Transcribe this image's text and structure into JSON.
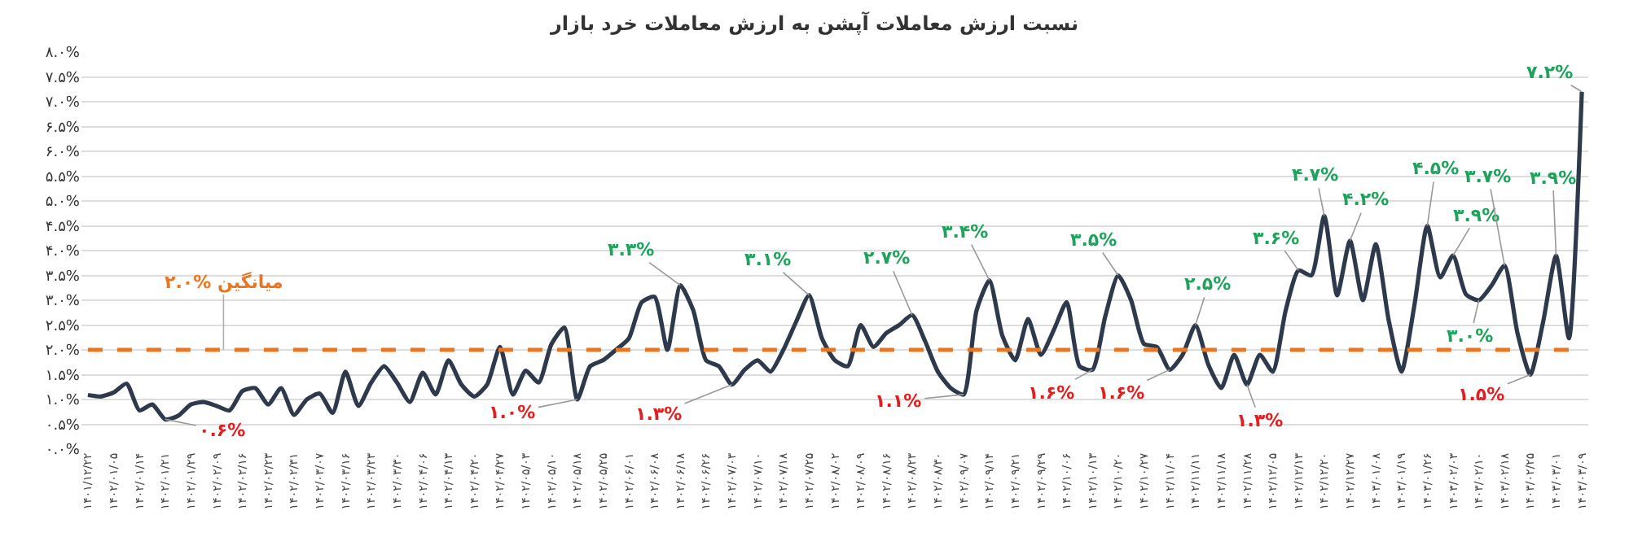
{
  "chart_data": {
    "type": "line",
    "title": "نسبت ارزش معاملات آپشن به ارزش معاملات خرد بازار",
    "categories": [
      "۱۴۰۱/۱۲/۲۲",
      null,
      "۱۴۰۲/۰۱/۰۵",
      null,
      "۱۴۰۲/۰۱/۱۴",
      null,
      "۱۴۰۲/۰۱/۲۱",
      null,
      "۱۴۰۲/۰۱/۲۹",
      null,
      "۱۴۰۲/۰۲/۰۹",
      null,
      "۱۴۰۲/۰۲/۱۶",
      null,
      "۱۴۰۲/۰۲/۲۳",
      null,
      "۱۴۰۲/۰۲/۳۱",
      null,
      "۱۴۰۲/۰۳/۰۷",
      null,
      "۱۴۰۲/۰۳/۱۶",
      null,
      "۱۴۰۲/۰۳/۲۳",
      null,
      "۱۴۰۲/۰۳/۳۰",
      null,
      "۱۴۰۲/۰۴/۰۶",
      null,
      "۱۴۰۲/۰۴/۱۳",
      null,
      "۱۴۰۲/۰۴/۲۰",
      null,
      "۱۴۰۲/۰۴/۲۷",
      null,
      "۱۴۰۲/۰۵/۰۳",
      null,
      "۱۴۰۲/۰۵/۱۰",
      null,
      "۱۴۰۲/۰۵/۱۸",
      null,
      "۱۴۰۲/۰۵/۲۵",
      null,
      "۱۴۰۲/۰۶/۰۱",
      null,
      "۱۴۰۲/۰۶/۰۸",
      null,
      "۱۴۰۲/۰۶/۱۸",
      null,
      "۱۴۰۲/۰۶/۲۶",
      null,
      "۱۴۰۲/۰۷/۰۳",
      null,
      "۱۴۰۲/۰۷/۱۰",
      null,
      "۱۴۰۲/۰۷/۱۸",
      null,
      "۱۴۰۲/۰۷/۲۵",
      null,
      "۱۴۰۲/۰۸/۰۲",
      null,
      "۱۴۰۲/۰۸/۰۹",
      null,
      "۱۴۰۲/۰۸/۱۶",
      null,
      "۱۴۰۲/۰۸/۲۳",
      null,
      "۱۴۰۲/۰۸/۳۰",
      null,
      "۱۴۰۲/۰۹/۰۷",
      null,
      "۱۴۰۲/۰۹/۱۴",
      null,
      "۱۴۰۲/۰۹/۲۱",
      null,
      "۱۴۰۲/۰۹/۲۹",
      null,
      "۱۴۰۲/۱۰/۰۶",
      null,
      "۱۴۰۲/۱۰/۱۳",
      null,
      "۱۴۰۲/۱۰/۲۰",
      null,
      "۱۴۰۲/۱۰/۲۷",
      null,
      "۱۴۰۲/۱۱/۰۴",
      null,
      "۱۴۰۲/۱۱/۱۱",
      null,
      "۱۴۰۲/۱۱/۱۸",
      null,
      "۱۴۰۲/۱۱/۲۸",
      null,
      "۱۴۰۲/۱۲/۰۵",
      null,
      "۱۴۰۲/۱۲/۱۳",
      null,
      "۱۴۰۲/۱۲/۲۰",
      null,
      "۱۴۰۲/۱۲/۲۷",
      null,
      "۱۴۰۳/۰۱/۰۸",
      null,
      "۱۴۰۳/۰۱/۱۹",
      null,
      "۱۴۰۳/۰۱/۲۶",
      null,
      "۱۴۰۳/۰۲/۰۳",
      null,
      "۱۴۰۳/۰۲/۱۰",
      null,
      "۱۴۰۳/۰۲/۱۸",
      null,
      "۱۴۰۳/۰۲/۲۵",
      null,
      "۱۴۰۳/۰۳/۰۱",
      null,
      "۱۴۰۳/۰۳/۰۹"
    ],
    "series": [
      {
        "color": "#2e3a4b",
        "values": [
          1.09,
          1.06,
          1.14,
          1.32,
          0.78,
          0.9,
          0.6,
          0.67,
          0.9,
          0.95,
          0.87,
          0.78,
          1.17,
          1.23,
          0.9,
          1.23,
          0.69,
          1.0,
          1.12,
          0.73,
          1.56,
          0.87,
          1.34,
          1.67,
          1.34,
          0.95,
          1.54,
          1.1,
          1.79,
          1.3,
          1.06,
          1.3,
          2.06,
          1.1,
          1.58,
          1.34,
          2.12,
          2.45,
          1.0,
          1.67,
          1.79,
          2.0,
          2.23,
          2.96,
          3.07,
          2.0,
          3.3,
          2.8,
          1.79,
          1.67,
          1.3,
          1.6,
          1.79,
          1.56,
          2.0,
          2.57,
          3.1,
          2.23,
          1.79,
          1.67,
          2.5,
          2.06,
          2.34,
          2.5,
          2.7,
          2.18,
          1.56,
          1.23,
          1.1,
          2.79,
          3.4,
          2.29,
          1.79,
          2.62,
          1.9,
          2.4,
          2.96,
          1.67,
          1.6,
          2.68,
          3.5,
          3.0,
          2.12,
          2.06,
          1.6,
          1.9,
          2.5,
          1.7,
          1.23,
          1.9,
          1.3,
          1.9,
          1.56,
          2.79,
          3.6,
          3.5,
          4.7,
          3.1,
          4.2,
          3.0,
          4.13,
          2.6,
          1.56,
          2.9,
          4.5,
          3.46,
          3.9,
          3.12,
          3.0,
          3.3,
          3.7,
          2.34,
          1.5,
          2.57,
          3.9,
          2.23,
          7.2
        ]
      }
    ],
    "ylim": [
      0,
      8
    ],
    "yticks": [
      {
        "value": 0,
        "label": "۰.۰%"
      },
      {
        "value": 0.5,
        "label": "۰.۵%"
      },
      {
        "value": 1,
        "label": "۱.۰%"
      },
      {
        "value": 1.5,
        "label": "۱.۵%"
      },
      {
        "value": 2,
        "label": "۲.۰%"
      },
      {
        "value": 2.5,
        "label": "۲.۵%"
      },
      {
        "value": 3,
        "label": "۳.۰%"
      },
      {
        "value": 3.5,
        "label": "۳.۵%"
      },
      {
        "value": 4,
        "label": "۴.۰%"
      },
      {
        "value": 4.5,
        "label": "۴.۵%"
      },
      {
        "value": 5,
        "label": "۵.۰%"
      },
      {
        "value": 5.5,
        "label": "۵.۵%"
      },
      {
        "value": 6,
        "label": "۶.۰%"
      },
      {
        "value": 6.5,
        "label": "۶.۵%"
      },
      {
        "value": 7,
        "label": "۷.۰%"
      },
      {
        "value": 7.5,
        "label": "۷.۵%"
      },
      {
        "value": 8,
        "label": "۸.۰%"
      }
    ],
    "grid": "y",
    "marker": "none",
    "line_style": "solid",
    "ref_lines": [
      {
        "axis": "y",
        "value": 2.0,
        "label": "۲.۰% میانگین",
        "color": "#e87722",
        "line_style": "dashed"
      }
    ],
    "annotations": [
      {
        "text": "۰.۶%",
        "x": "۱۴۰۲/۰۱/۲۱",
        "y": 0.6
      },
      {
        "text": "۱.۰%",
        "x": "۱۴۰۲/۰۵/۱۸",
        "y": 1.0
      },
      {
        "text": "۳.۳%",
        "x": "۱۴۰۲/۰۶/۱۸",
        "y": 3.3
      },
      {
        "text": "۱.۳%",
        "x": "۱۴۰۲/۰۷/۰۳",
        "y": 1.3
      },
      {
        "text": "۳.۱%",
        "x": "۱۴۰۲/۰۷/۲۵",
        "y": 3.1
      },
      {
        "text": "۲.۷%",
        "x": "۱۴۰۲/۰۸/۲۳",
        "y": 2.7
      },
      {
        "text": "۱.۱%",
        "x": "۱۴۰۲/۰۹/۰۷",
        "y": 1.1
      },
      {
        "text": "۳.۴%",
        "x": "۱۴۰۲/۰۹/۱۴",
        "y": 3.4
      },
      {
        "text": "۱.۶%",
        "x": "۱۴۰۲/۱۰/۱۳",
        "y": 1.6
      },
      {
        "text": "۳.۵%",
        "x": "۱۴۰۲/۱۰/۲۰",
        "y": 3.5
      },
      {
        "text": "۱.۶%",
        "x": "۱۴۰۲/۱۱/۰۴",
        "y": 1.6
      },
      {
        "text": "۲.۵%",
        "x": "۱۴۰۲/۱۱/۱۱",
        "y": 2.5
      },
      {
        "text": "۱.۳%",
        "x": "۱۴۰۲/۱۱/۲۸",
        "y": 1.3
      },
      {
        "text": "۳.۶%",
        "x": "۱۴۰۲/۱۲/۱۳",
        "y": 3.6
      },
      {
        "text": "۴.۷%",
        "x": "۱۴۰۲/۱۲/۲۰",
        "y": 4.7
      },
      {
        "text": "۴.۲%",
        "x": "۱۴۰۲/۱۲/۲۷",
        "y": 4.2
      },
      {
        "text": "۴.۵%",
        "x": "۱۴۰۳/۰۱/۲۶",
        "y": 4.5
      },
      {
        "text": "۳.۹%",
        "x": "۱۴۰۳/۰۲/۰۳",
        "y": 3.9
      },
      {
        "text": "۳.۰%",
        "x": "۱۴۰۳/۰۲/۱۰",
        "y": 3.0
      },
      {
        "text": "۳.۷%",
        "x": "۱۴۰۳/۰۲/۱۸",
        "y": 3.7
      },
      {
        "text": "۱.۵%",
        "x": "۱۴۰۳/۰۲/۲۵",
        "y": 1.5
      },
      {
        "text": "۳.۹%",
        "x": "۱۴۰۳/۰۳/۰۱",
        "y": 3.9
      },
      {
        "text": "۷.۲%",
        "x": "۱۴۰۳/۰۳/۰۹",
        "y": 7.2
      }
    ]
  }
}
